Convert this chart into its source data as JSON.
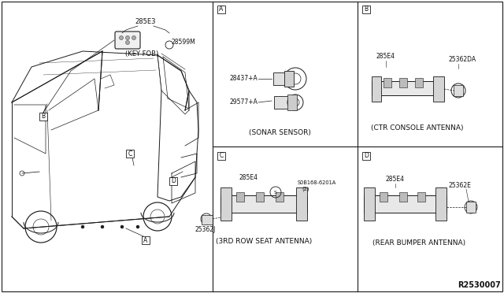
{
  "bg_color": "#ffffff",
  "line_color": "#1a1a1a",
  "text_color": "#111111",
  "fig_width": 6.4,
  "fig_height": 3.72,
  "diagram_title": "R2530007",
  "left_panel": {
    "part_label": "285E3",
    "part_num": "28599M",
    "caption": "(KEY FOB)"
  },
  "panel_A": {
    "label": "A",
    "part1_num": "28437+A",
    "part2_num": "29577+A",
    "caption": "(SONAR SENSOR)"
  },
  "panel_B": {
    "label": "B",
    "part1_num": "285E4",
    "part2_num": "25362DA",
    "caption": "(CTR CONSOLE ANTENNA)"
  },
  "panel_C": {
    "label": "C",
    "part1_num": "285E4",
    "part2_num": "0B168-6201A",
    "part2_prefix": "S",
    "part2_suffix": "(2)",
    "part3_num": "25362J",
    "caption": "(3RD ROW SEAT ANTENNA)"
  },
  "panel_D": {
    "label": "D",
    "part1_num": "285E4",
    "part2_num": "25362E",
    "caption": "(REAR BUMPER ANTENNA)"
  }
}
